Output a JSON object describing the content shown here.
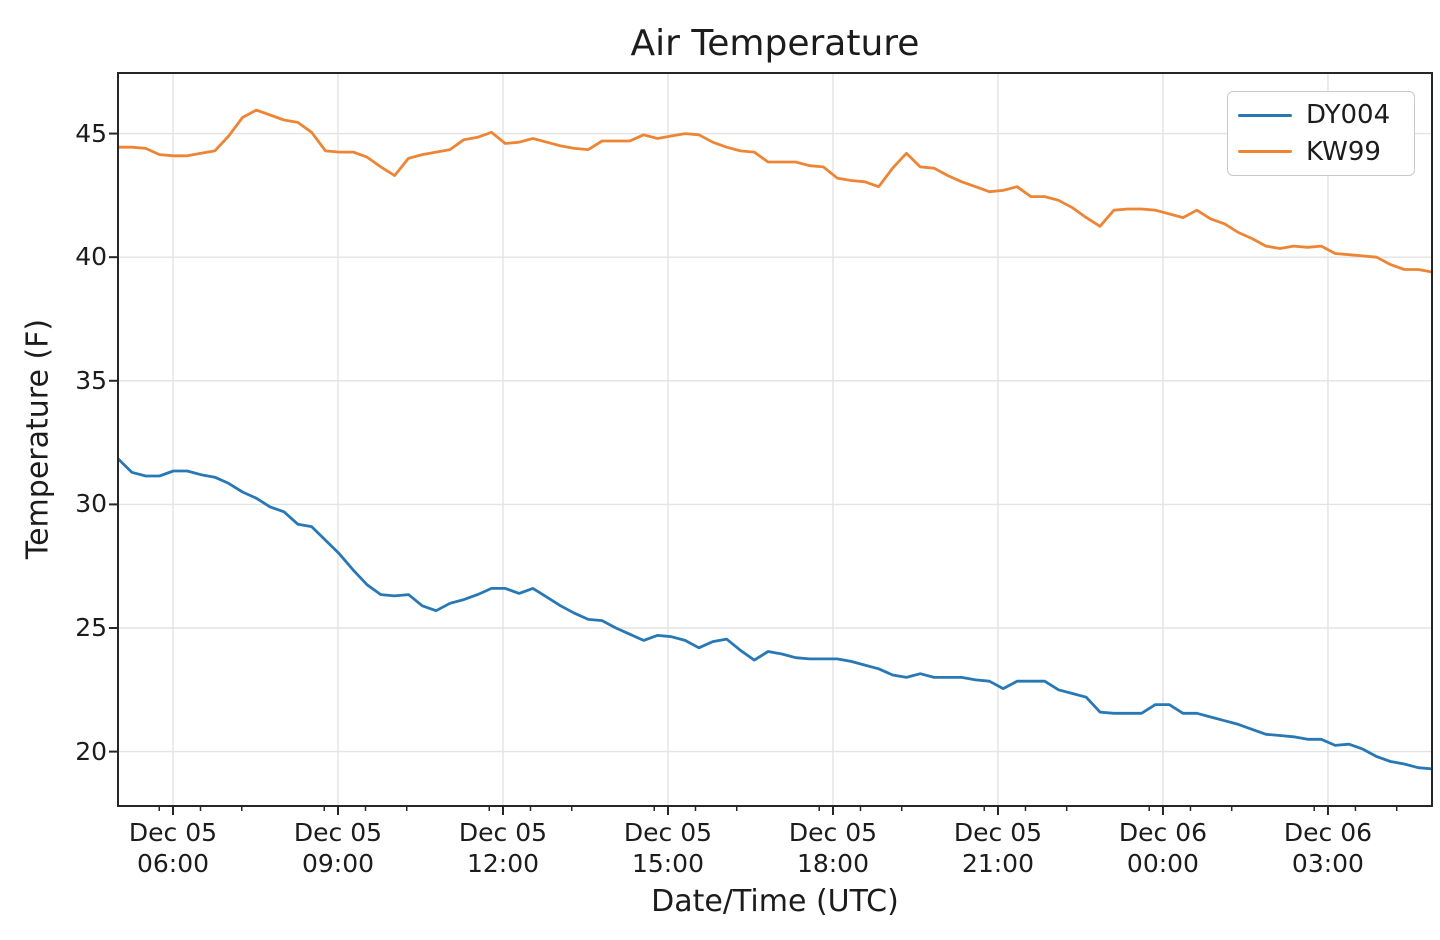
{
  "colors": {
    "axis": "#262626",
    "grid": "#e3e3e3",
    "background": "#ffffff",
    "series_blue": "#2878b5",
    "series_orange": "#ee8535"
  },
  "chart_data": {
    "type": "line",
    "title": "Air Temperature",
    "xlabel": "Date/Time (UTC)",
    "ylabel": "Temperature (F)",
    "grid": true,
    "legend_position": "upper right",
    "ylim": [
      17.8,
      47.45
    ],
    "y_ticks": [
      20,
      25,
      30,
      35,
      40,
      45
    ],
    "x_axis": {
      "span_minutes": 1433.5,
      "minor_tick_every_minutes": 45,
      "major_tick_every_minutes": 180,
      "ticks": [
        {
          "minutes": 60,
          "date": "Dec 05",
          "time": "06:00"
        },
        {
          "minutes": 240,
          "date": "Dec 05",
          "time": "09:00"
        },
        {
          "minutes": 420,
          "date": "Dec 05",
          "time": "12:00"
        },
        {
          "minutes": 600,
          "date": "Dec 05",
          "time": "15:00"
        },
        {
          "minutes": 780,
          "date": "Dec 05",
          "time": "18:00"
        },
        {
          "minutes": 960,
          "date": "Dec 05",
          "time": "21:00"
        },
        {
          "minutes": 1140,
          "date": "Dec 06",
          "time": "00:00"
        },
        {
          "minutes": 1320,
          "date": "Dec 06",
          "time": "03:00"
        }
      ]
    },
    "sample_interval_minutes": 15,
    "series": [
      {
        "name": "DY004",
        "color": "#2878b5",
        "values": [
          31.85,
          31.3,
          31.15,
          31.15,
          31.35,
          31.35,
          31.2,
          31.1,
          30.85,
          30.5,
          30.25,
          29.9,
          29.7,
          29.2,
          29.1,
          28.55,
          28.0,
          27.35,
          26.75,
          26.35,
          26.3,
          26.35,
          25.9,
          25.7,
          26.0,
          26.15,
          26.35,
          26.6,
          26.6,
          26.4,
          26.6,
          26.25,
          25.9,
          25.6,
          25.35,
          25.3,
          25.0,
          24.75,
          24.5,
          24.7,
          24.65,
          24.5,
          24.2,
          24.45,
          24.55,
          24.1,
          23.7,
          24.05,
          23.95,
          23.8,
          23.75,
          23.75,
          23.75,
          23.65,
          23.5,
          23.35,
          23.1,
          23.0,
          23.15,
          23.0,
          23.0,
          23.0,
          22.9,
          22.85,
          22.55,
          22.85,
          22.85,
          22.85,
          22.5,
          22.35,
          22.2,
          21.6,
          21.55,
          21.55,
          21.55,
          21.9,
          21.9,
          21.55,
          21.55,
          21.4,
          21.25,
          21.1,
          20.9,
          20.7,
          20.65,
          20.6,
          20.5,
          20.5,
          20.25,
          20.3,
          20.1,
          19.8,
          19.6,
          19.5,
          19.35,
          19.3
        ]
      },
      {
        "name": "KW99",
        "color": "#ee8535",
        "values": [
          44.45,
          44.45,
          44.4,
          44.15,
          44.1,
          44.1,
          44.2,
          44.3,
          44.9,
          45.65,
          45.95,
          45.75,
          45.55,
          45.45,
          45.05,
          44.3,
          44.25,
          44.25,
          44.05,
          43.65,
          43.3,
          44.0,
          44.15,
          44.25,
          44.35,
          44.75,
          44.85,
          45.05,
          44.6,
          44.65,
          44.8,
          44.65,
          44.5,
          44.4,
          44.35,
          44.7,
          44.7,
          44.7,
          44.95,
          44.8,
          44.9,
          45.0,
          44.95,
          44.65,
          44.45,
          44.3,
          44.25,
          43.85,
          43.85,
          43.85,
          43.7,
          43.65,
          43.2,
          43.1,
          43.05,
          42.85,
          43.6,
          44.2,
          43.65,
          43.6,
          43.3,
          43.05,
          42.85,
          42.65,
          42.7,
          42.85,
          42.45,
          42.45,
          42.3,
          42.0,
          41.6,
          41.25,
          41.9,
          41.95,
          41.95,
          41.9,
          41.75,
          41.6,
          41.9,
          41.55,
          41.35,
          41.0,
          40.75,
          40.45,
          40.35,
          40.45,
          40.4,
          40.45,
          40.15,
          40.1,
          40.05,
          40.0,
          39.7,
          39.5,
          39.5,
          39.4
        ]
      }
    ]
  }
}
